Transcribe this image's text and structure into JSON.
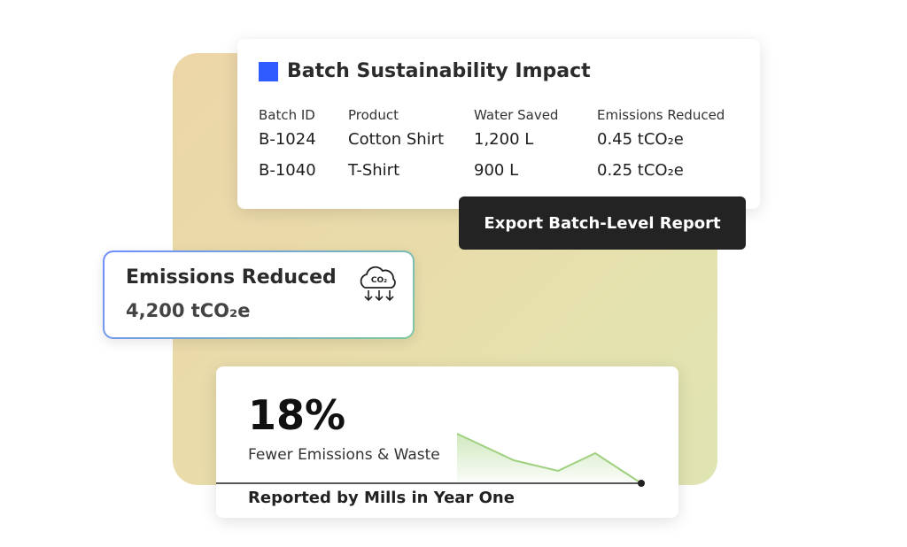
{
  "table_card": {
    "title": "Batch Sustainability Impact",
    "headers": [
      "Batch ID",
      "Product",
      "Water Saved",
      "Emissions Reduced"
    ],
    "rows": [
      [
        "B-1024",
        "Cotton Shirt",
        "1,200 L",
        "0.45 tCO₂e"
      ],
      [
        "B-1040",
        "T-Shirt",
        "900 L",
        "0.25 tCO₂e"
      ]
    ]
  },
  "button": {
    "label": "Export Batch-Level Report"
  },
  "emissions_card": {
    "title": "Emissions Reduced",
    "value": "4,200 tCO₂e",
    "icon_label": "CO₂"
  },
  "stat_card": {
    "value": "18%",
    "subtitle": "Fewer Emissions & Waste",
    "footer": "Reported by Mills in Year One"
  }
}
